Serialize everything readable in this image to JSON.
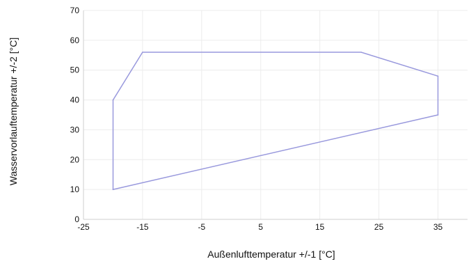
{
  "chart_data": {
    "type": "area",
    "xlabel": "Außenlufttemperatur +/-1 [°C]",
    "ylabel": "Wasservorlauftemperatur +/-2 [°C]",
    "xlim": [
      -25,
      40
    ],
    "ylim": [
      0,
      70
    ],
    "x_ticks": [
      "-25",
      "-15",
      "-5",
      "5",
      "15",
      "25",
      "35"
    ],
    "x_tick_values": [
      -25,
      -15,
      -5,
      5,
      15,
      25,
      35
    ],
    "y_ticks": [
      "0",
      "10",
      "20",
      "30",
      "40",
      "50",
      "60",
      "70"
    ],
    "y_tick_values": [
      0,
      10,
      20,
      30,
      40,
      50,
      60,
      70
    ],
    "grid": true,
    "series": [
      {
        "x": [
          -20,
          -20,
          -15,
          22,
          35,
          35,
          -20
        ],
        "y": [
          10,
          40,
          56,
          56,
          48,
          35,
          10
        ],
        "color": "#9999dd"
      }
    ]
  }
}
